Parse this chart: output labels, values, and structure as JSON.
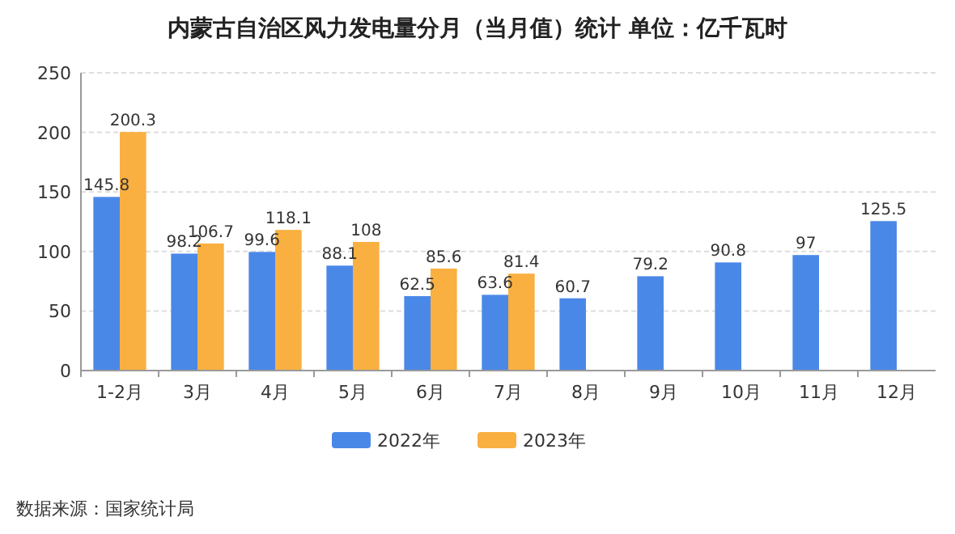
{
  "chart_data": {
    "type": "bar",
    "title": "内蒙古自治区风力发电量分月（当月值）统计 单位：亿千瓦时",
    "categories": [
      "1-2月",
      "3月",
      "4月",
      "5月",
      "6月",
      "7月",
      "8月",
      "9月",
      "10月",
      "11月",
      "12月"
    ],
    "series": [
      {
        "name": "2022年",
        "color": "#4a88e8",
        "values": [
          145.8,
          98.2,
          99.6,
          88.1,
          62.5,
          63.6,
          60.7,
          79.2,
          90.8,
          97,
          125.5
        ]
      },
      {
        "name": "2023年",
        "color": "#f9b040",
        "values": [
          200.3,
          106.7,
          118.1,
          108,
          85.6,
          81.4,
          null,
          null,
          null,
          null,
          null
        ]
      }
    ],
    "ylim": [
      0,
      250
    ],
    "yticks": [
      0,
      50,
      100,
      150,
      200,
      250
    ],
    "grid": "y",
    "legend": "bottom",
    "data_labels": true,
    "annotations": [
      "数据来源：国家统计局"
    ]
  }
}
